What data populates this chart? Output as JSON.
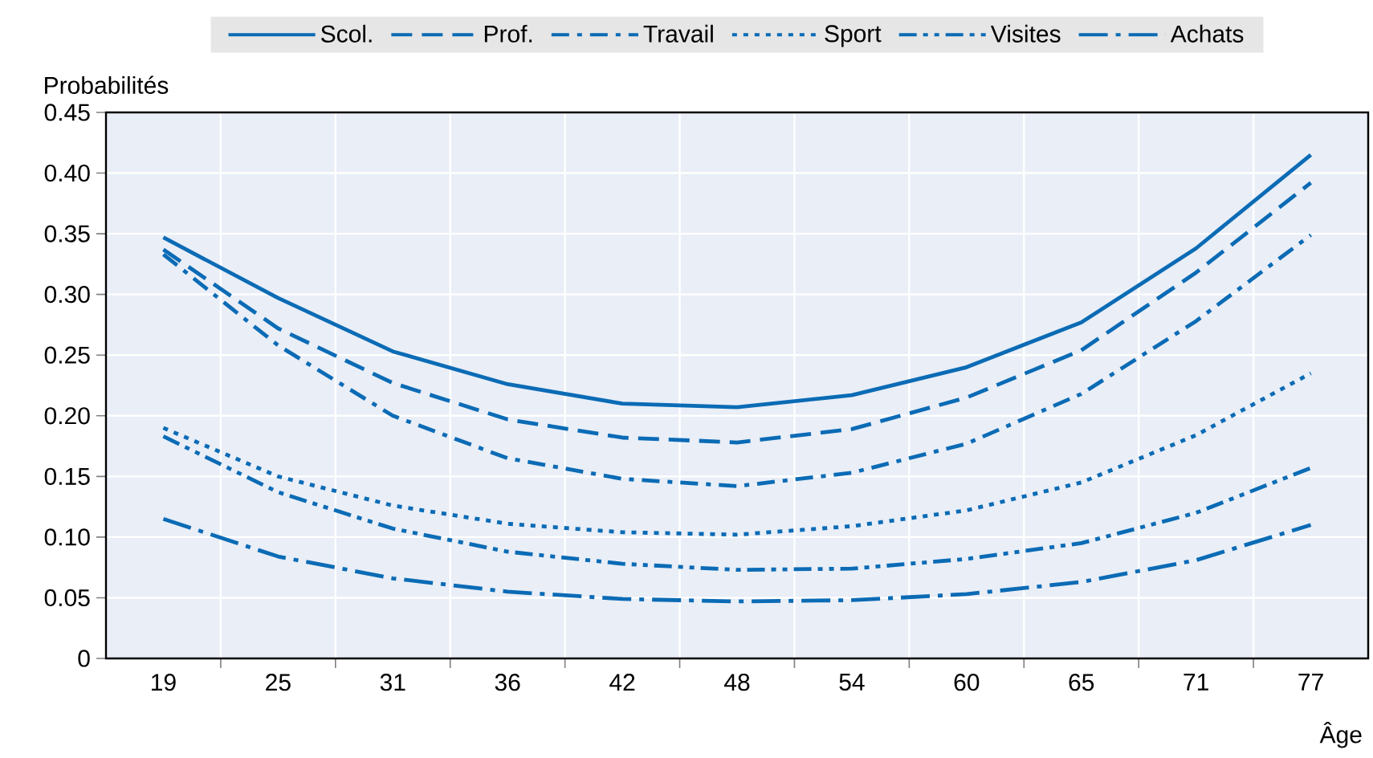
{
  "chart_data": {
    "type": "line",
    "xlabel": "Âge",
    "ylabel": "Probabilités",
    "categories": [
      "19",
      "25",
      "31",
      "36",
      "42",
      "48",
      "54",
      "60",
      "65",
      "71",
      "77"
    ],
    "ylim": [
      0,
      0.45
    ],
    "yticks": [
      0,
      0.05,
      {
        "value": 0.1,
        "label": "0.10"
      },
      0.15,
      {
        "value": 0.2,
        "label": "0.20"
      },
      0.25,
      {
        "value": 0.3,
        "label": "0.30"
      },
      0.35,
      {
        "value": 0.4,
        "label": "0.40"
      },
      0.45
    ],
    "grid": true,
    "legend": "top",
    "marker": "none",
    "series": [
      {
        "name": "Scol.",
        "color": "#0b6bb5",
        "line_style": "solid",
        "values": [
          0.347,
          0.297,
          0.253,
          0.226,
          0.21,
          0.207,
          0.217,
          0.24,
          0.277,
          0.338,
          0.415
        ]
      },
      {
        "name": "Prof.",
        "color": "#0b6bb5",
        "line_style": "dashed",
        "values": [
          0.337,
          0.272,
          0.227,
          0.197,
          0.182,
          0.178,
          0.189,
          0.215,
          0.254,
          0.318,
          0.392
        ]
      },
      {
        "name": "Travail",
        "color": "#0b6bb5",
        "line_style": "dashdot",
        "values": [
          0.333,
          0.258,
          0.2,
          0.165,
          0.148,
          0.142,
          0.153,
          0.177,
          0.218,
          0.278,
          0.349
        ]
      },
      {
        "name": "Sport",
        "color": "#0b6bb5",
        "line_style": "dotted",
        "values": [
          0.19,
          0.15,
          0.126,
          0.111,
          0.104,
          0.102,
          0.109,
          0.122,
          0.145,
          0.184,
          0.235
        ]
      },
      {
        "name": "Visites",
        "color": "#0b6bb5",
        "line_style": "dashdotdot",
        "values": [
          0.183,
          0.137,
          0.107,
          0.088,
          0.078,
          0.073,
          0.074,
          0.082,
          0.095,
          0.12,
          0.157
        ]
      },
      {
        "name": "Achats",
        "color": "#0b6bb5",
        "line_style": "longdashdot",
        "values": [
          0.115,
          0.084,
          0.066,
          0.055,
          0.049,
          0.047,
          0.048,
          0.053,
          0.063,
          0.081,
          0.11
        ]
      }
    ]
  }
}
